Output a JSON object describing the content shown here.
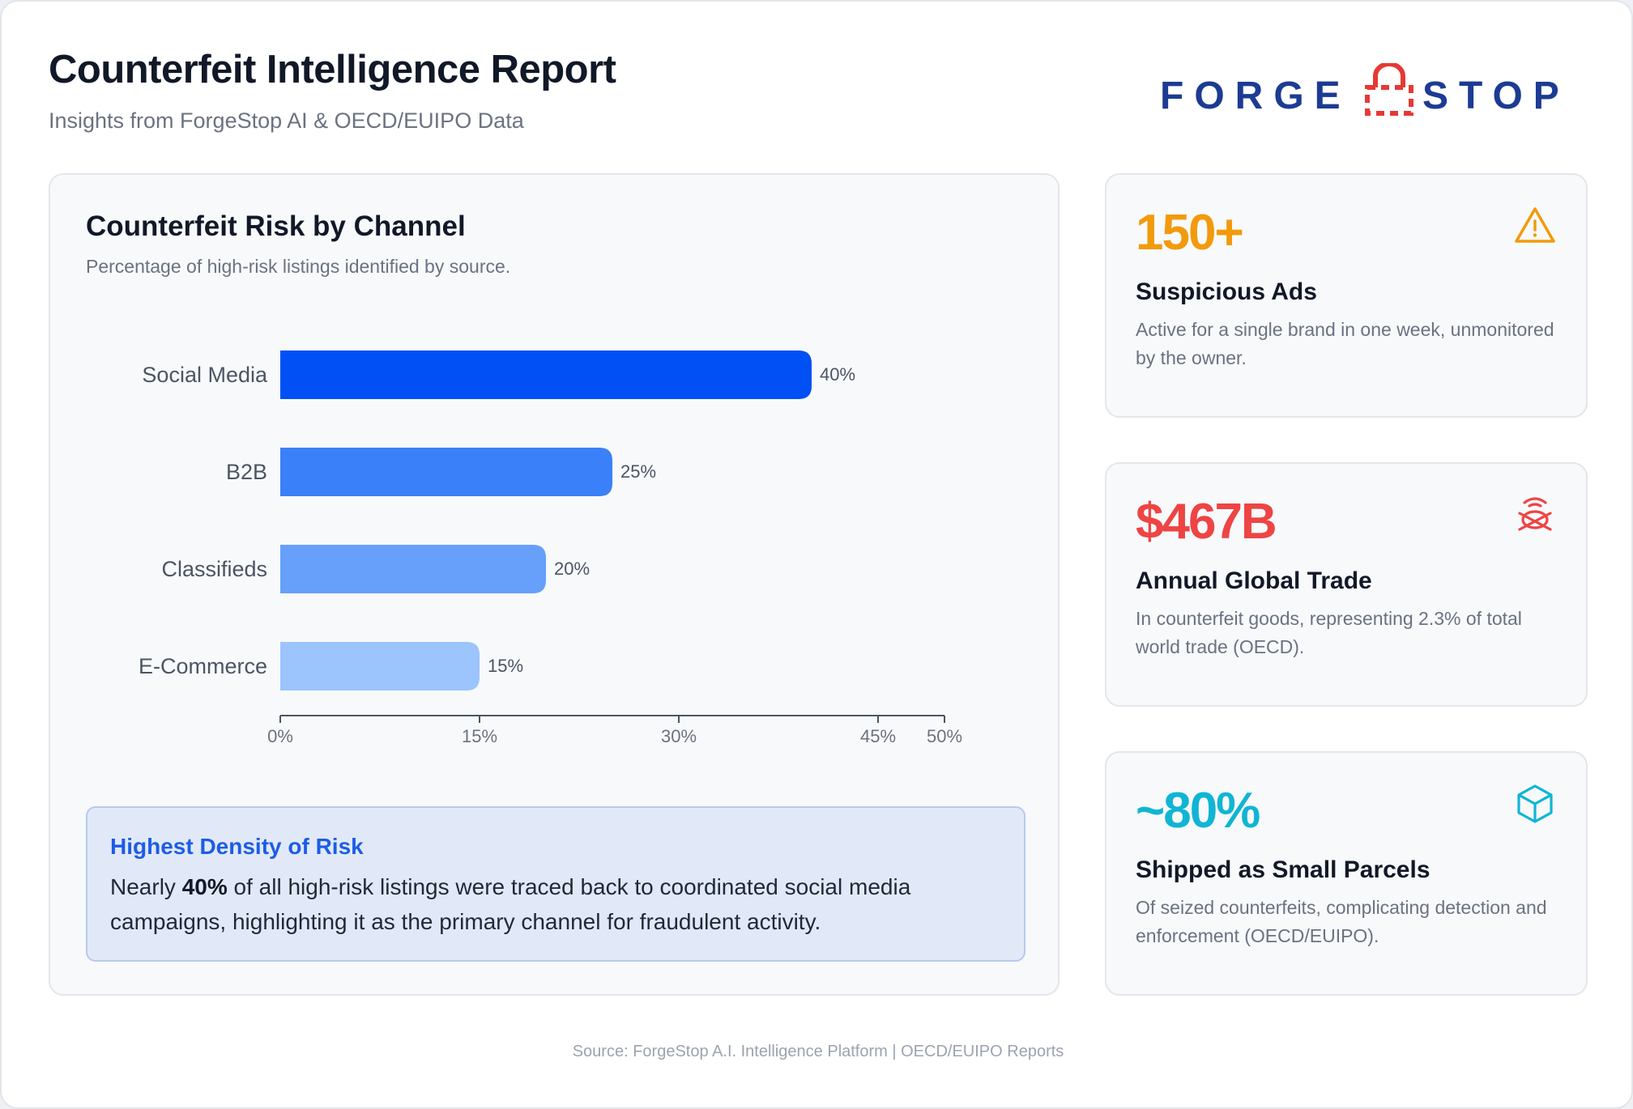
{
  "header": {
    "title": "Counterfeit Intelligence Report",
    "subtitle": "Insights from ForgeStop AI & OECD/EUIPO Data",
    "logo_left": "FORGE",
    "logo_right": "STOP"
  },
  "chart_card": {
    "title": "Counterfeit Risk by Channel",
    "subtitle": "Percentage of high-risk listings identified by source."
  },
  "chart_data": {
    "type": "bar",
    "orientation": "horizontal",
    "categories": [
      "Social Media",
      "B2B",
      "Classifieds",
      "E-Commerce"
    ],
    "values": [
      40,
      25,
      20,
      15
    ],
    "value_labels": [
      "40%",
      "25%",
      "20%",
      "15%"
    ],
    "colors": [
      "#0050f5",
      "#3a80f8",
      "#66a0fb",
      "#9cc4fd"
    ],
    "xlim": [
      0,
      50
    ],
    "xticks": [
      0,
      15,
      30,
      45,
      50
    ],
    "xtick_labels": [
      "0%",
      "15%",
      "30%",
      "45%",
      "50%"
    ],
    "grid": false
  },
  "insight": {
    "title": "Highest Density of Risk",
    "text_before": "Nearly ",
    "text_bold": "40%",
    "text_after": " of all high-risk listings were traced back to coordinated social media campaigns, highlighting it as the primary channel for fraudulent activity."
  },
  "stats": [
    {
      "value": "150+",
      "label": "Suspicious Ads",
      "description": "Active for a single brand in one week, unmonitored by the owner.",
      "icon": "warning-triangle-icon",
      "color": "#f29a0c"
    },
    {
      "value": "$467B",
      "label": "Annual Global Trade",
      "description": "In counterfeit goods, representing 2.3% of total world trade (OECD).",
      "icon": "trade-globe-icon",
      "color": "#ee4444"
    },
    {
      "value": "~80%",
      "label": "Shipped as Small Parcels",
      "description": "Of seized counterfeits, complicating detection and enforcement (OECD/EUIPO).",
      "icon": "package-box-icon",
      "color": "#10b5d3"
    }
  ],
  "footer": {
    "source": "Source: ForgeStop A.I. Intelligence Platform | OECD/EUIPO Reports"
  }
}
